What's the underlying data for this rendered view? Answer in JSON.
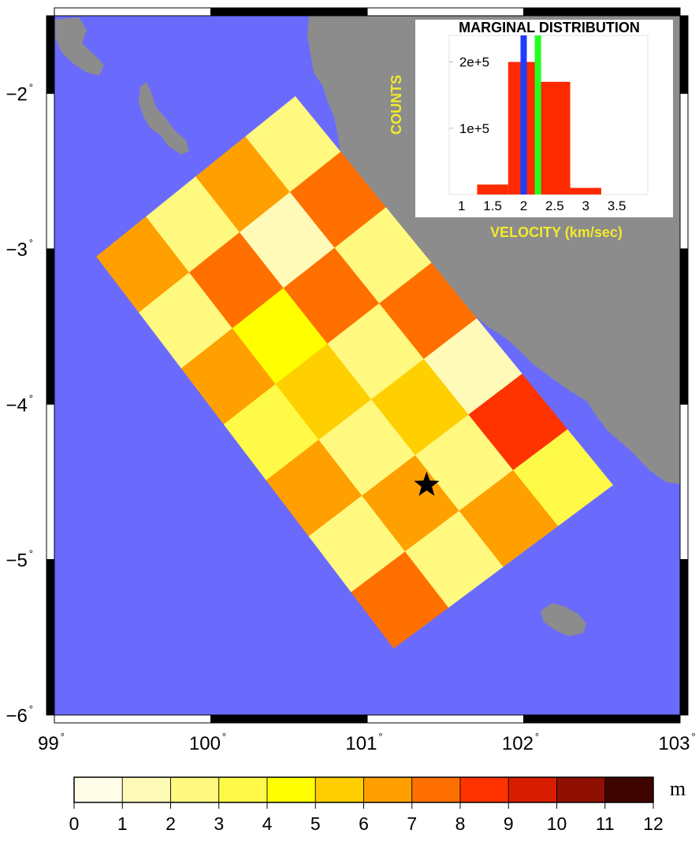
{
  "map": {
    "lon_ticks": [
      "99",
      "100",
      "101",
      "102",
      "103"
    ],
    "lat_ticks": [
      "−2",
      "−3",
      "−4",
      "−5",
      "−6"
    ],
    "lon_range": [
      99,
      103
    ],
    "lat_range": [
      -6.0,
      -1.5
    ],
    "degree_symbol": "°",
    "colors": {
      "ocean": "#6a6bfd",
      "land": "#8c8c8c",
      "frame_black": "#000000",
      "frame_white": "#ffffff"
    },
    "epicenter_icon": "star-icon",
    "epicenter": {
      "lon": 101.38,
      "lat": -4.52
    },
    "fault_model": {
      "corner_nw": {
        "lon": 99.27,
        "lat": -3.05
      },
      "corner_ne": {
        "lon": 100.54,
        "lat": -2.02
      },
      "corner_se": {
        "lon": 102.57,
        "lat": -4.52
      },
      "corner_sw": {
        "lon": 101.17,
        "lat": -5.57
      },
      "strike_cells": 4,
      "dip_cells": 7,
      "slip_m": [
        [
          6.5,
          2.5,
          6.5,
          2.5
        ],
        [
          2.5,
          7.5,
          1.5,
          7.5
        ],
        [
          6.5,
          4.5,
          7.5,
          2.5
        ],
        [
          3.5,
          5.5,
          2.5,
          7.5
        ],
        [
          6.5,
          2.5,
          5.5,
          1.5
        ],
        [
          2.5,
          6.5,
          2.5,
          8.5
        ],
        [
          7.5,
          2.5,
          6.5,
          3.5
        ]
      ]
    }
  },
  "inset": {
    "title": "MARGINAL DISTRIBUTION",
    "ylabel": "COUNTS",
    "xlabel": "VELOCITY (km/sec)",
    "colors": {
      "bars": "#ff2a00",
      "line_blue": "#1f3cff",
      "line_green": "#22ff22",
      "text": "#f2e92b"
    }
  },
  "chart_data": {
    "type": "bar",
    "title": "MARGINAL DISTRIBUTION",
    "xlabel": "VELOCITY (km/sec)",
    "ylabel": "COUNTS",
    "xlim": [
      0.8,
      4.0
    ],
    "ylim": [
      0,
      240000
    ],
    "x_ticks": [
      "1",
      "1.5",
      "2",
      "2.5",
      "3",
      "3.5"
    ],
    "y_ticks": [
      "1e+5",
      "2e+5"
    ],
    "y_tick_values": [
      100000,
      200000
    ],
    "bin_edges": [
      1.25,
      1.75,
      2.25,
      2.75,
      3.25
    ],
    "values": [
      15000,
      200000,
      170000,
      10000
    ],
    "markers": [
      {
        "color": "blue",
        "x": 2.0
      },
      {
        "color": "green",
        "x": 2.23
      }
    ]
  },
  "colorbar": {
    "unit": "m",
    "ticks": [
      "0",
      "1",
      "2",
      "3",
      "4",
      "5",
      "6",
      "7",
      "8",
      "9",
      "10",
      "11",
      "12"
    ],
    "colors": [
      "#fffde8",
      "#fffab8",
      "#fff980",
      "#fffa48",
      "#ffff00",
      "#ffcf00",
      "#ffa000",
      "#ff7000",
      "#ff3300",
      "#d81c00",
      "#8f1000",
      "#3d0400"
    ]
  }
}
